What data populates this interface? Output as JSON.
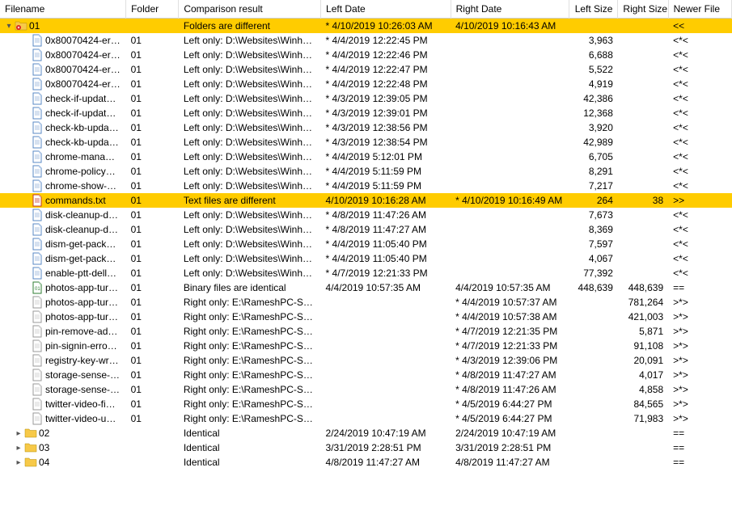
{
  "columns": [
    {
      "key": "filename",
      "label": "Filename",
      "cls": "col-filename"
    },
    {
      "key": "folder",
      "label": "Folder",
      "cls": "col-folder"
    },
    {
      "key": "comp",
      "label": "Comparison result",
      "cls": "col-comp"
    },
    {
      "key": "ldate",
      "label": "Left Date",
      "cls": "col-ldate"
    },
    {
      "key": "rdate",
      "label": "Right Date",
      "cls": "col-rdate"
    },
    {
      "key": "lsize",
      "label": "Left Size",
      "cls": "col-lsize num"
    },
    {
      "key": "rsize",
      "label": "Right Size",
      "cls": "col-rsize num"
    },
    {
      "key": "newer",
      "label": "Newer File",
      "cls": "col-newer"
    }
  ],
  "rows": [
    {
      "indent": 0,
      "expander": "▾",
      "icon": "folder-diff",
      "filename": "01",
      "folder": "",
      "comp": "Folders are different",
      "ldate": "* 4/10/2019 10:26:03 AM",
      "rdate": "4/10/2019 10:16:43 AM",
      "lsize": "",
      "rsize": "",
      "newer": "<<",
      "highlight": true,
      "interact": true
    },
    {
      "indent": 1,
      "icon": "file",
      "filename": "0x80070424-err…",
      "folder": "01",
      "comp": "Left only: D:\\Websites\\Winhel…",
      "ldate": "* 4/4/2019 12:22:45 PM",
      "rdate": "",
      "lsize": "3,963",
      "rsize": "",
      "newer": "<*<",
      "interact": true
    },
    {
      "indent": 1,
      "icon": "file",
      "filename": "0x80070424-err…",
      "folder": "01",
      "comp": "Left only: D:\\Websites\\Winhel…",
      "ldate": "* 4/4/2019 12:22:46 PM",
      "rdate": "",
      "lsize": "6,688",
      "rsize": "",
      "newer": "<*<",
      "interact": true
    },
    {
      "indent": 1,
      "icon": "file",
      "filename": "0x80070424-err…",
      "folder": "01",
      "comp": "Left only: D:\\Websites\\Winhel…",
      "ldate": "* 4/4/2019 12:22:47 PM",
      "rdate": "",
      "lsize": "5,522",
      "rsize": "",
      "newer": "<*<",
      "interact": true
    },
    {
      "indent": 1,
      "icon": "file",
      "filename": "0x80070424-err…",
      "folder": "01",
      "comp": "Left only: D:\\Websites\\Winhel…",
      "ldate": "* 4/4/2019 12:22:48 PM",
      "rdate": "",
      "lsize": "4,919",
      "rsize": "",
      "newer": "<*<",
      "interact": true
    },
    {
      "indent": 1,
      "icon": "file",
      "filename": "check-if-updat…",
      "folder": "01",
      "comp": "Left only: D:\\Websites\\Winhel…",
      "ldate": "* 4/3/2019 12:39:05 PM",
      "rdate": "",
      "lsize": "42,386",
      "rsize": "",
      "newer": "<*<",
      "interact": true
    },
    {
      "indent": 1,
      "icon": "file",
      "filename": "check-if-updat…",
      "folder": "01",
      "comp": "Left only: D:\\Websites\\Winhel…",
      "ldate": "* 4/3/2019 12:39:01 PM",
      "rdate": "",
      "lsize": "12,368",
      "rsize": "",
      "newer": "<*<",
      "interact": true
    },
    {
      "indent": 1,
      "icon": "file",
      "filename": "check-kb-upda…",
      "folder": "01",
      "comp": "Left only: D:\\Websites\\Winhel…",
      "ldate": "* 4/3/2019 12:38:56 PM",
      "rdate": "",
      "lsize": "3,920",
      "rsize": "",
      "newer": "<*<",
      "interact": true
    },
    {
      "indent": 1,
      "icon": "file",
      "filename": "check-kb-upda…",
      "folder": "01",
      "comp": "Left only: D:\\Websites\\Winhel…",
      "ldate": "* 4/3/2019 12:38:54 PM",
      "rdate": "",
      "lsize": "42,989",
      "rsize": "",
      "newer": "<*<",
      "interact": true
    },
    {
      "indent": 1,
      "icon": "file",
      "filename": "chrome-mana…",
      "folder": "01",
      "comp": "Left only: D:\\Websites\\Winhel…",
      "ldate": "* 4/4/2019 5:12:01 PM",
      "rdate": "",
      "lsize": "6,705",
      "rsize": "",
      "newer": "<*<",
      "interact": true
    },
    {
      "indent": 1,
      "icon": "file",
      "filename": "chrome-policy…",
      "folder": "01",
      "comp": "Left only: D:\\Websites\\Winhel…",
      "ldate": "* 4/4/2019 5:11:59 PM",
      "rdate": "",
      "lsize": "8,291",
      "rsize": "",
      "newer": "<*<",
      "interact": true
    },
    {
      "indent": 1,
      "icon": "file",
      "filename": "chrome-show-…",
      "folder": "01",
      "comp": "Left only: D:\\Websites\\Winhel…",
      "ldate": "* 4/4/2019 5:11:59 PM",
      "rdate": "",
      "lsize": "7,217",
      "rsize": "",
      "newer": "<*<",
      "interact": true
    },
    {
      "indent": 1,
      "icon": "file-red",
      "filename": "commands.txt",
      "folder": "01",
      "comp": "Text files are different",
      "ldate": "4/10/2019 10:16:28 AM",
      "rdate": "* 4/10/2019 10:16:49 AM",
      "lsize": "264",
      "rsize": "38",
      "newer": ">>",
      "highlight": true,
      "interact": true
    },
    {
      "indent": 1,
      "icon": "file",
      "filename": "disk-cleanup-d…",
      "folder": "01",
      "comp": "Left only: D:\\Websites\\Winhel…",
      "ldate": "* 4/8/2019 11:47:26 AM",
      "rdate": "",
      "lsize": "7,673",
      "rsize": "",
      "newer": "<*<",
      "interact": true
    },
    {
      "indent": 1,
      "icon": "file",
      "filename": "disk-cleanup-d…",
      "folder": "01",
      "comp": "Left only: D:\\Websites\\Winhel…",
      "ldate": "* 4/8/2019 11:47:27 AM",
      "rdate": "",
      "lsize": "8,369",
      "rsize": "",
      "newer": "<*<",
      "interact": true
    },
    {
      "indent": 1,
      "icon": "file",
      "filename": "dism-get-pack…",
      "folder": "01",
      "comp": "Left only: D:\\Websites\\Winhel…",
      "ldate": "* 4/4/2019 11:05:40 PM",
      "rdate": "",
      "lsize": "7,597",
      "rsize": "",
      "newer": "<*<",
      "interact": true
    },
    {
      "indent": 1,
      "icon": "file",
      "filename": "dism-get-pack…",
      "folder": "01",
      "comp": "Left only: D:\\Websites\\Winhel…",
      "ldate": "* 4/4/2019 11:05:40 PM",
      "rdate": "",
      "lsize": "4,067",
      "rsize": "",
      "newer": "<*<",
      "interact": true
    },
    {
      "indent": 1,
      "icon": "file",
      "filename": "enable-ptt-dell…",
      "folder": "01",
      "comp": "Left only: D:\\Websites\\Winhel…",
      "ldate": "* 4/7/2019 12:21:33 PM",
      "rdate": "",
      "lsize": "77,392",
      "rsize": "",
      "newer": "<*<",
      "interact": true
    },
    {
      "indent": 1,
      "icon": "file-bin",
      "filename": "photos-app-tur…",
      "folder": "01",
      "comp": "Binary files are identical",
      "ldate": "4/4/2019 10:57:35 AM",
      "rdate": "4/4/2019 10:57:35 AM",
      "lsize": "448,639",
      "rsize": "448,639",
      "newer": "==",
      "interact": true
    },
    {
      "indent": 1,
      "icon": "file-r",
      "filename": "photos-app-tur…",
      "folder": "01",
      "comp": "Right only: E:\\RameshPC-Sync…",
      "ldate": "",
      "rdate": "* 4/4/2019 10:57:37 AM",
      "lsize": "",
      "rsize": "781,264",
      "newer": ">*>",
      "interact": true
    },
    {
      "indent": 1,
      "icon": "file-r",
      "filename": "photos-app-tur…",
      "folder": "01",
      "comp": "Right only: E:\\RameshPC-Sync…",
      "ldate": "",
      "rdate": "* 4/4/2019 10:57:38 AM",
      "lsize": "",
      "rsize": "421,003",
      "newer": ">*>",
      "interact": true
    },
    {
      "indent": 1,
      "icon": "file-r",
      "filename": "pin-remove-ad…",
      "folder": "01",
      "comp": "Right only: E:\\RameshPC-Sync…",
      "ldate": "",
      "rdate": "* 4/7/2019 12:21:35 PM",
      "lsize": "",
      "rsize": "5,871",
      "newer": ">*>",
      "interact": true
    },
    {
      "indent": 1,
      "icon": "file-r",
      "filename": "pin-signin-erro…",
      "folder": "01",
      "comp": "Right only: E:\\RameshPC-Sync…",
      "ldate": "",
      "rdate": "* 4/7/2019 12:21:33 PM",
      "lsize": "",
      "rsize": "91,108",
      "newer": ">*>",
      "interact": true
    },
    {
      "indent": 1,
      "icon": "file-r",
      "filename": "registry-key-wr…",
      "folder": "01",
      "comp": "Right only: E:\\RameshPC-Sync…",
      "ldate": "",
      "rdate": "* 4/3/2019 12:39:06 PM",
      "lsize": "",
      "rsize": "20,091",
      "newer": ">*>",
      "interact": true
    },
    {
      "indent": 1,
      "icon": "file-r",
      "filename": "storage-sense-…",
      "folder": "01",
      "comp": "Right only: E:\\RameshPC-Sync…",
      "ldate": "",
      "rdate": "* 4/8/2019 11:47:27 AM",
      "lsize": "",
      "rsize": "4,017",
      "newer": ">*>",
      "interact": true
    },
    {
      "indent": 1,
      "icon": "file-r",
      "filename": "storage-sense-…",
      "folder": "01",
      "comp": "Right only: E:\\RameshPC-Sync…",
      "ldate": "",
      "rdate": "* 4/8/2019 11:47:26 AM",
      "lsize": "",
      "rsize": "4,858",
      "newer": ">*>",
      "interact": true
    },
    {
      "indent": 1,
      "icon": "file-r",
      "filename": "twitter-video-fi…",
      "folder": "01",
      "comp": "Right only: E:\\RameshPC-Sync…",
      "ldate": "",
      "rdate": "* 4/5/2019 6:44:27 PM",
      "lsize": "",
      "rsize": "84,565",
      "newer": ">*>",
      "interact": true
    },
    {
      "indent": 1,
      "icon": "file-r",
      "filename": "twitter-video-u…",
      "folder": "01",
      "comp": "Right only: E:\\RameshPC-Sync…",
      "ldate": "",
      "rdate": "* 4/5/2019 6:44:27 PM",
      "lsize": "",
      "rsize": "71,983",
      "newer": ">*>",
      "interact": true
    },
    {
      "indent": 2,
      "expander": "▸",
      "icon": "folder",
      "filename": "02",
      "folder": "",
      "comp": "Identical",
      "ldate": "2/24/2019 10:47:19 AM",
      "rdate": "2/24/2019 10:47:19 AM",
      "lsize": "",
      "rsize": "",
      "newer": "==",
      "interact": true
    },
    {
      "indent": 2,
      "expander": "▸",
      "icon": "folder",
      "filename": "03",
      "folder": "",
      "comp": "Identical",
      "ldate": "3/31/2019 2:28:51 PM",
      "rdate": "3/31/2019 2:28:51 PM",
      "lsize": "",
      "rsize": "",
      "newer": "==",
      "interact": true
    },
    {
      "indent": 2,
      "expander": "▸",
      "icon": "folder",
      "filename": "04",
      "folder": "",
      "comp": "Identical",
      "ldate": "4/8/2019 11:47:27 AM",
      "rdate": "4/8/2019 11:47:27 AM",
      "lsize": "",
      "rsize": "",
      "newer": "==",
      "interact": true
    }
  ],
  "icons": {
    "folder": "<svg viewBox='0 0 16 16'><path fill='#f7c948' stroke='#b58b00' stroke-width='0.5' d='M1 3h5l1 1.5h8v8.5H1z'/></svg>",
    "folder-diff": "<svg viewBox='0 0 16 16'><path fill='#f7c948' stroke='#b58b00' stroke-width='0.5' d='M1 3h5l1 1.5h8v8.5H1z'/><circle cx='5' cy='10' r='3' fill='#d22'/><path d='M3.8 10h2.4M5 8.8v2.4' stroke='#fff' stroke-width='1'/></svg>",
    "file": "<svg viewBox='0 0 16 16'><path fill='#fff' stroke='#5a88c4' stroke-width='1' d='M3 1h7l3 3v11H3z'/><path fill='#cfe0f5' d='M10 1v3h3z'/><path stroke='#5a88c4' stroke-width='0.6' d='M5 6h6M5 8h6M5 10h6'/></svg>",
    "file-r": "<svg viewBox='0 0 16 16'><path fill='#fff' stroke='#999' stroke-width='1' d='M3 1h7l3 3v11H3z'/><path fill='#e8e8e8' d='M10 1v3h3z'/><path stroke='#aaa' stroke-width='0.6' d='M5 6h6M5 8h6M5 10h6'/></svg>",
    "file-red": "<svg viewBox='0 0 16 16'><path fill='#fff' stroke='#c0392b' stroke-width='1' d='M3 1h7l3 3v11H3z'/><path fill='#f5d0cb' d='M10 1v3h3z'/><path stroke='#c0392b' stroke-width='0.8' d='M5 6h6M5 8h6M5 10h6'/></svg>",
    "file-bin": "<svg viewBox='0 0 16 16'><path fill='#fff' stroke='#2e7d32' stroke-width='1' d='M3 1h7l3 3v11H3z'/><path fill='#c8e6c9' d='M10 1v3h3z'/><text x='5' y='11' font-size='6' fill='#2e7d32'>01</text></svg>"
  }
}
